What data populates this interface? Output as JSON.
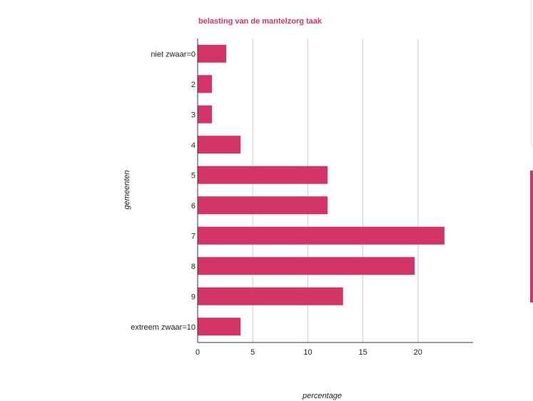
{
  "colors": {
    "bar": "#d33466",
    "grid": "#cccccc",
    "axis": "#333333",
    "title": "#d33466"
  },
  "chart_data": {
    "type": "bar",
    "orientation": "horizontal",
    "title": "belasting van de mantelzorg taak",
    "xlabel": "percentage",
    "ylabel": "gemeenten",
    "categories": [
      "niet zwaar=0",
      "2",
      "3",
      "4",
      "5",
      "6",
      "7",
      "8",
      "9",
      "extreem zwaar=10"
    ],
    "values": [
      2.6,
      1.3,
      1.3,
      3.9,
      11.8,
      11.8,
      22.4,
      19.7,
      13.2,
      3.9
    ],
    "xlim": [
      0,
      25
    ],
    "xticks": [
      0,
      5,
      10,
      15,
      20
    ],
    "grid": true,
    "legend": "none"
  }
}
